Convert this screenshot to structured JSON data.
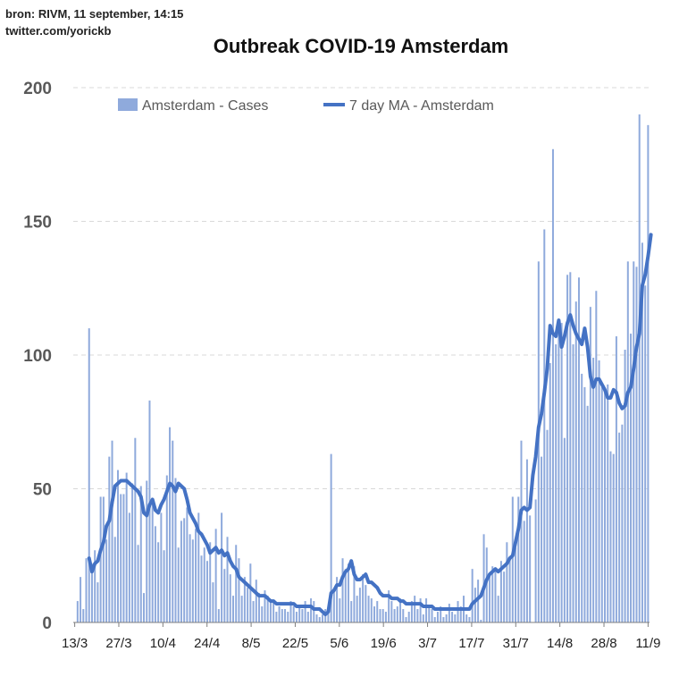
{
  "source": {
    "line1": "bron: RIVM, 11 september, 14:15",
    "line2": "twitter.com/yorickb"
  },
  "chart_data": {
    "type": "bar+line",
    "title": "Outbreak COVID-19 Amsterdam",
    "xlabel": "",
    "ylabel": "",
    "ylim": [
      0,
      200
    ],
    "yticks": [
      0,
      50,
      100,
      150,
      200
    ],
    "x_start": "13/3",
    "x_end": "11/9",
    "xticks": [
      "13/3",
      "27/3",
      "10/4",
      "24/4",
      "8/5",
      "22/5",
      "5/6",
      "19/6",
      "3/7",
      "17/7",
      "31/7",
      "14/8",
      "28/8",
      "11/9"
    ],
    "grid": "horizontal dashed",
    "legend_position": "top",
    "series": [
      {
        "name": "Amsterdam - Cases",
        "type": "bar",
        "color": "#8faadc",
        "values": [
          0,
          8,
          17,
          5,
          24,
          110,
          22,
          27,
          15,
          47,
          47,
          31,
          62,
          68,
          32,
          57,
          48,
          48,
          56,
          41,
          52,
          69,
          29,
          51,
          11,
          53,
          83,
          45,
          36,
          30,
          41,
          27,
          55,
          73,
          68,
          54,
          28,
          38,
          39,
          43,
          33,
          31,
          35,
          41,
          25,
          28,
          23,
          30,
          15,
          35,
          5,
          41,
          20,
          32,
          18,
          10,
          29,
          24,
          10,
          17,
          13,
          22,
          8,
          16,
          11,
          6,
          12,
          10,
          8,
          8,
          4,
          6,
          5,
          5,
          4,
          8,
          6,
          4,
          6,
          5,
          8,
          4,
          9,
          8,
          3,
          2,
          3,
          5,
          4,
          63,
          12,
          17,
          9,
          24,
          20,
          22,
          8,
          21,
          10,
          13,
          18,
          14,
          10,
          9,
          6,
          8,
          5,
          5,
          4,
          12,
          8,
          5,
          6,
          9,
          5,
          2,
          4,
          8,
          10,
          5,
          9,
          3,
          9,
          6,
          5,
          2,
          4,
          6,
          2,
          3,
          7,
          4,
          3,
          8,
          6,
          10,
          3,
          2,
          20,
          13,
          16,
          1,
          33,
          28,
          18,
          21,
          20,
          10,
          23,
          19,
          30,
          24,
          47,
          28,
          47,
          68,
          38,
          61,
          40,
          0,
          46,
          135,
          62,
          147,
          72,
          97,
          177,
          104,
          113,
          112,
          69,
          130,
          131,
          104,
          120,
          129,
          93,
          88,
          81,
          118,
          99,
          124,
          98,
          88,
          86,
          89,
          64,
          63,
          107,
          71,
          74,
          102,
          135,
          108,
          135,
          133,
          190,
          142,
          126,
          186
        ],
        "note": "daily values estimated from bar heights"
      },
      {
        "name": "7 day MA - Amsterdam",
        "type": "line",
        "color": "#4472c4",
        "values": [
          null,
          null,
          null,
          null,
          null,
          24,
          19,
          22,
          23,
          27,
          30,
          36,
          38,
          45,
          51,
          52,
          53,
          53,
          53,
          52,
          51,
          50,
          49,
          47,
          41,
          40,
          44,
          46,
          42,
          41,
          44,
          46,
          49,
          52,
          51,
          49,
          52,
          51,
          50,
          46,
          41,
          39,
          37,
          34,
          33,
          31,
          29,
          26,
          27,
          28,
          26,
          27,
          25,
          26,
          23,
          21,
          20,
          17,
          16,
          15,
          14,
          13,
          12,
          11,
          10,
          10,
          10,
          9,
          8,
          8,
          7,
          7,
          7,
          7,
          7,
          7,
          7,
          6,
          6,
          6,
          6,
          6,
          6,
          5,
          5,
          5,
          4,
          3,
          4,
          11,
          12,
          14,
          14,
          17,
          19,
          20,
          23,
          18,
          16,
          16,
          17,
          18,
          15,
          15,
          14,
          13,
          11,
          10,
          10,
          10,
          9,
          9,
          9,
          8,
          8,
          7,
          7,
          7,
          7,
          7,
          7,
          6,
          6,
          6,
          6,
          5,
          5,
          5,
          5,
          5,
          5,
          5,
          5,
          5,
          5,
          5,
          5,
          5,
          7,
          8,
          9,
          10,
          13,
          16,
          18,
          19,
          20,
          19,
          20,
          21,
          22,
          24,
          25,
          30,
          35,
          42,
          43,
          42,
          43,
          55,
          62,
          73,
          78,
          86,
          95,
          111,
          108,
          107,
          113,
          103,
          107,
          112,
          115,
          111,
          108,
          106,
          104,
          110,
          103,
          92,
          88,
          91,
          91,
          89,
          87,
          84,
          84,
          87,
          86,
          82,
          80,
          81,
          86,
          88,
          95,
          103,
          108,
          126,
          130,
          137,
          145
        ]
      }
    ]
  }
}
